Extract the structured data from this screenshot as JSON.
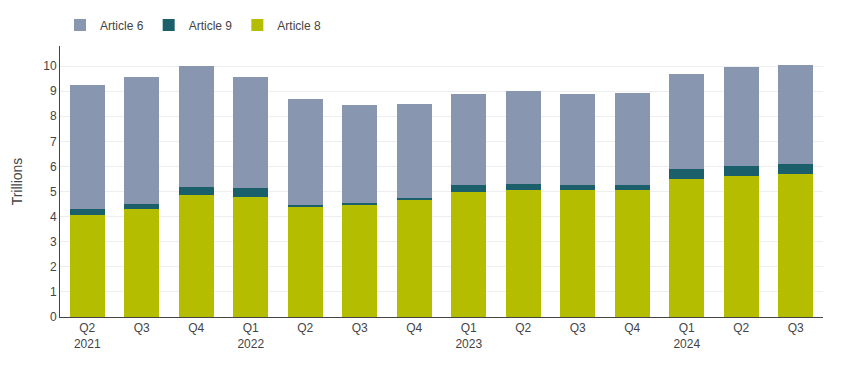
{
  "chart_data": {
    "type": "bar",
    "stacked": true,
    "ylabel": "Trillions",
    "categories": [
      "Q2\n2021",
      "Q3",
      "Q4",
      "Q1\n2022",
      "Q2",
      "Q3",
      "Q4",
      "Q1\n2023",
      "Q2",
      "Q3",
      "Q4",
      "Q1\n2024",
      "Q2",
      "Q3"
    ],
    "series": [
      {
        "name": "Article 8",
        "color": "#b5bd00",
        "values": [
          4.05,
          4.3,
          4.85,
          4.8,
          4.4,
          4.45,
          4.65,
          5.0,
          5.05,
          5.05,
          5.05,
          5.5,
          5.6,
          5.7
        ]
      },
      {
        "name": "Article 9",
        "color": "#1a5f6a",
        "values": [
          0.25,
          0.2,
          0.35,
          0.35,
          0.08,
          0.08,
          0.08,
          0.28,
          0.25,
          0.22,
          0.22,
          0.38,
          0.4,
          0.38
        ]
      },
      {
        "name": "Article 6",
        "color": "#8896b0",
        "values": [
          4.95,
          5.05,
          4.8,
          4.4,
          4.22,
          3.9,
          3.77,
          3.6,
          3.7,
          3.62,
          3.65,
          3.82,
          3.98,
          3.95
        ]
      }
    ],
    "ylim": [
      0,
      10.8
    ],
    "yticks": [
      0,
      1,
      2,
      3,
      4,
      5,
      6,
      7,
      8,
      9,
      10
    ],
    "grid": true,
    "legend": "upper left"
  }
}
